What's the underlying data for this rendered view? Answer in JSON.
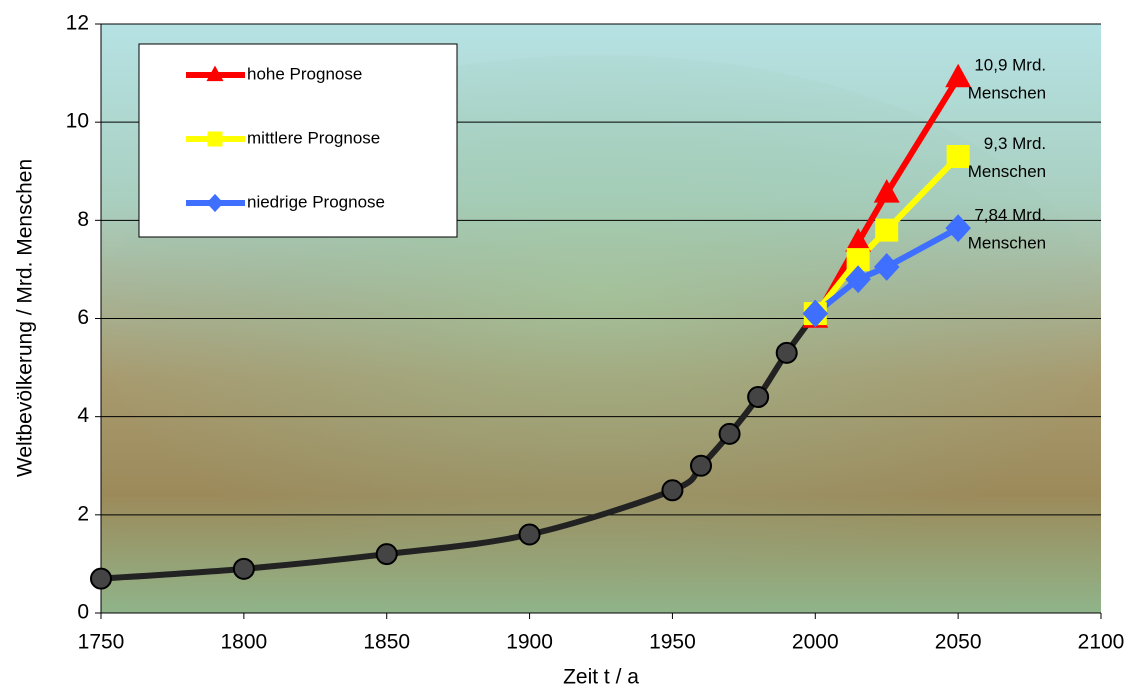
{
  "chart_data": {
    "type": "line",
    "xlabel": "Zeit t / a",
    "ylabel": "Weltbevölkerung / Mrd. Menschen",
    "xlim": [
      1750,
      2100
    ],
    "xticks": [
      1750,
      1800,
      1850,
      1900,
      1950,
      2000,
      2050,
      2100
    ],
    "ylim": [
      0,
      12
    ],
    "yticks": [
      0,
      2,
      4,
      6,
      8,
      10,
      12
    ],
    "grid": true,
    "legend": "upper left",
    "series": [
      {
        "color": "#222222",
        "marker": "circle",
        "smooth": true,
        "x": [
          1750,
          1800,
          1850,
          1900,
          1950,
          1960,
          1970,
          1980,
          1990,
          2000
        ],
        "values": [
          0.7,
          0.9,
          1.2,
          1.6,
          2.5,
          3.0,
          3.65,
          4.4,
          5.3,
          6.1
        ]
      },
      {
        "name": "hohe Prognose",
        "color": "#ff0000",
        "marker": "triangle",
        "x": [
          2000,
          2015,
          2025,
          2050
        ],
        "values": [
          6.0,
          7.55,
          8.55,
          10.9
        ]
      },
      {
        "name": "mittlere Prognose",
        "color": "#ffff00",
        "marker": "square",
        "x": [
          2000,
          2015,
          2025,
          2050
        ],
        "values": [
          6.1,
          7.2,
          7.8,
          9.3
        ]
      },
      {
        "name": "niedrige Prognose",
        "color": "#3f6fff",
        "marker": "diamond",
        "x": [
          2000,
          2015,
          2025,
          2050
        ],
        "values": [
          6.1,
          6.8,
          7.05,
          7.84
        ]
      }
    ],
    "annotations": [
      {
        "lines": [
          "10,9 Mrd.",
          "Menschen"
        ],
        "x": 2050,
        "y": 10.9
      },
      {
        "lines": [
          "9,3 Mrd.",
          "Menschen"
        ],
        "x": 2050,
        "y": 9.3
      },
      {
        "lines": [
          "7,84 Mrd.",
          "Menschen"
        ],
        "x": 2050,
        "y": 7.84
      }
    ]
  }
}
